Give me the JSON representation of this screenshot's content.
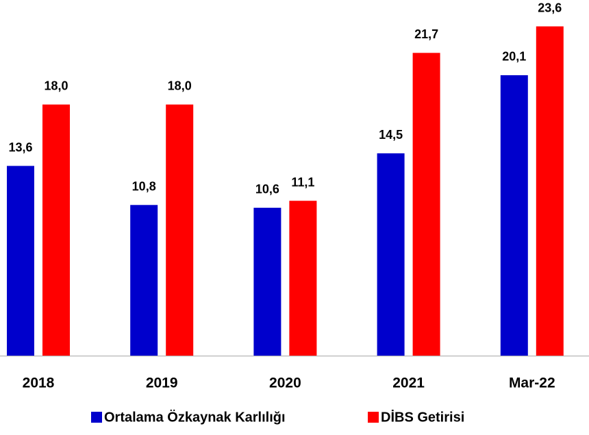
{
  "chart_data": {
    "type": "bar",
    "categories": [
      "2018",
      "2019",
      "2020",
      "2021",
      "Mar-22"
    ],
    "series": [
      {
        "name": "Ortalama Özkaynak Karlılığı",
        "color": "#0000cc",
        "values": [
          13.6,
          10.8,
          10.6,
          14.5,
          20.1
        ],
        "value_labels": [
          "13,6",
          "10,8",
          "10,6",
          "14,5",
          "20,1"
        ]
      },
      {
        "name": "DİBS Getirisi",
        "color": "#ff0000",
        "values": [
          18.0,
          18.0,
          11.1,
          21.7,
          23.6
        ],
        "value_labels": [
          "18,0",
          "18,0",
          "11,1",
          "21,7",
          "23,6"
        ]
      }
    ],
    "legend": "bottom"
  }
}
